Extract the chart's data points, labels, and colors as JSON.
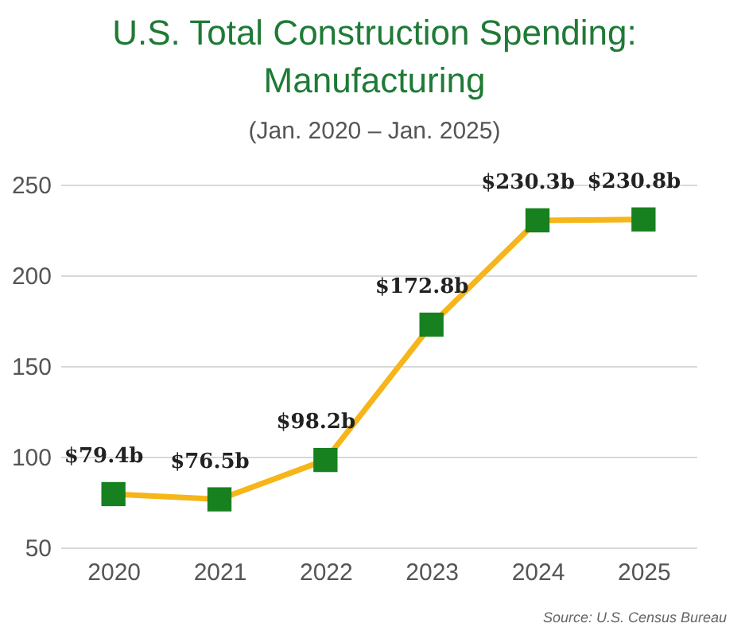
{
  "chart_data": {
    "type": "line",
    "title": "U.S. Total Construction Spending: Manufacturing",
    "subtitle": "(Jan. 2020 – Jan. 2025)",
    "categories": [
      "2020",
      "2021",
      "2022",
      "2023",
      "2024",
      "2025"
    ],
    "series": [
      {
        "color": "#f6b519",
        "colors": [
          "#17801f",
          "#17801f",
          "#17801f",
          "#17801f",
          "#17801f",
          "#17801f"
        ],
        "values": [
          79.4,
          76.5,
          98.2,
          172.8,
          230.3,
          230.8
        ],
        "value_labels": [
          "$79.4b",
          "$76.5b",
          "$98.2b",
          "$172.8b",
          "$230.3b",
          "$230.8b"
        ]
      }
    ],
    "marker": "square",
    "ylim": [
      50,
      250
    ],
    "yticks": [
      50,
      100,
      150,
      200,
      250
    ],
    "grid": "y",
    "annotations": [
      "Source: U.S. Census Bureau"
    ]
  }
}
